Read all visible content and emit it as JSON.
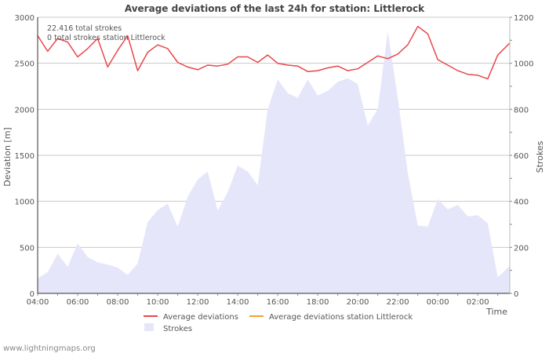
{
  "chart_data": {
    "type": "line",
    "title": "Average deviations of the last 24h for station: Littlerock",
    "annotations": [
      "22.416 total strokes",
      "0 total strokes station Littlerock"
    ],
    "xlabel": "Time",
    "ylabel_left": "Deviation  [m]",
    "ylabel_right": "Strokes",
    "ylim_left": [
      0,
      3000
    ],
    "ylim_right": [
      0,
      1200
    ],
    "yticks_left": [
      "0",
      "500",
      "1000",
      "1500",
      "2000",
      "2500",
      "3000"
    ],
    "yticks_right": [
      "0",
      "200",
      "400",
      "600",
      "800",
      "1000",
      "1200"
    ],
    "x_range_hours": [
      4,
      27.6
    ],
    "xticks": [
      {
        "h": 4,
        "label": "04:00"
      },
      {
        "h": 6,
        "label": "06:00"
      },
      {
        "h": 8,
        "label": "08:00"
      },
      {
        "h": 10,
        "label": "10:00"
      },
      {
        "h": 12,
        "label": "12:00"
      },
      {
        "h": 14,
        "label": "14:00"
      },
      {
        "h": 16,
        "label": "16:00"
      },
      {
        "h": 18,
        "label": "18:00"
      },
      {
        "h": 20,
        "label": "20:00"
      },
      {
        "h": 22,
        "label": "22:00"
      },
      {
        "h": 24,
        "label": "00:00"
      },
      {
        "h": 26,
        "label": "02:00"
      }
    ],
    "colors": {
      "avg_dev": "#e8464b",
      "avg_dev_station": "#f0a030",
      "strokes": "#e6e6fa",
      "grid": "#c8c8c8",
      "text": "#555555",
      "title": "#444444"
    },
    "series": [
      {
        "name": "Average deviations",
        "axis": "left",
        "x": [
          4.0,
          4.5,
          5.0,
          5.5,
          6.0,
          6.5,
          7.0,
          7.5,
          8.0,
          8.5,
          9.0,
          9.5,
          10.0,
          10.5,
          11.0,
          11.5,
          12.0,
          12.5,
          13.0,
          13.5,
          14.0,
          14.5,
          15.0,
          15.5,
          16.0,
          16.5,
          17.0,
          17.5,
          18.0,
          18.5,
          19.0,
          19.5,
          20.0,
          20.5,
          21.0,
          21.5,
          22.0,
          22.5,
          23.0,
          23.5,
          24.0,
          24.5,
          25.0,
          25.5,
          26.0,
          26.5,
          27.0,
          27.6
        ],
        "values": [
          2800,
          2630,
          2770,
          2730,
          2570,
          2660,
          2770,
          2460,
          2640,
          2800,
          2420,
          2620,
          2700,
          2660,
          2510,
          2460,
          2430,
          2480,
          2470,
          2490,
          2570,
          2570,
          2510,
          2590,
          2500,
          2480,
          2470,
          2410,
          2420,
          2450,
          2470,
          2420,
          2440,
          2510,
          2580,
          2550,
          2600,
          2700,
          2900,
          2820,
          2540,
          2480,
          2420,
          2380,
          2370,
          2330,
          2590,
          2720
        ]
      },
      {
        "name": "Average deviations station Littlerock",
        "axis": "left",
        "x": [],
        "values": []
      },
      {
        "name": "Strokes",
        "axis": "right",
        "type": "area",
        "x": [
          4.0,
          4.5,
          5.0,
          5.5,
          6.0,
          6.5,
          7.0,
          7.5,
          8.0,
          8.5,
          9.0,
          9.5,
          10.0,
          10.5,
          11.0,
          11.5,
          12.0,
          12.5,
          13.0,
          13.5,
          14.0,
          14.5,
          15.0,
          15.5,
          16.0,
          16.5,
          17.0,
          17.5,
          18.0,
          18.5,
          19.0,
          19.5,
          20.0,
          20.5,
          21.0,
          21.5,
          22.0,
          22.5,
          23.0,
          23.5,
          24.0,
          24.5,
          25.0,
          25.5,
          26.0,
          26.5,
          27.0,
          27.6
        ],
        "values": [
          65,
          92,
          172,
          115,
          218,
          158,
          135,
          125,
          112,
          80,
          130,
          310,
          362,
          390,
          290,
          420,
          495,
          530,
          360,
          440,
          555,
          530,
          470,
          800,
          930,
          870,
          850,
          930,
          860,
          880,
          920,
          935,
          910,
          730,
          800,
          1140,
          850,
          525,
          295,
          290,
          410,
          365,
          385,
          335,
          340,
          305,
          70,
          120
        ]
      }
    ]
  },
  "legend": {
    "avg_dev": "Average deviations",
    "avg_dev_station": "Average deviations station Littlerock",
    "strokes": "Strokes"
  },
  "footer": "www.lightningmaps.org"
}
